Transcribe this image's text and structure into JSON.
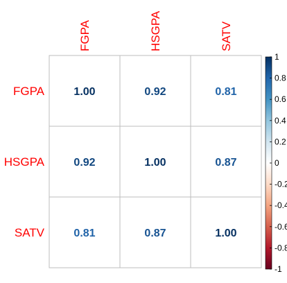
{
  "chart_data": {
    "type": "heatmap",
    "variables": [
      "FGPA",
      "HSGPA",
      "SATV"
    ],
    "matrix": [
      [
        1.0,
        0.92,
        0.81
      ],
      [
        0.92,
        1.0,
        0.87
      ],
      [
        0.81,
        0.87,
        1.0
      ]
    ],
    "cell_labels": [
      [
        "1.00",
        "0.92",
        "0.81"
      ],
      [
        "0.92",
        "1.00",
        "0.87"
      ],
      [
        "0.81",
        "0.87",
        "1.00"
      ]
    ],
    "colorbar": {
      "range": [
        -1,
        1
      ],
      "ticks": [
        1,
        0.8,
        0.6,
        0.4,
        0.2,
        0,
        -0.2,
        -0.4,
        -0.6,
        -0.8,
        -1
      ],
      "tick_labels": [
        "1",
        "0.8",
        "0.6",
        "0.4",
        "0.2",
        "0",
        "-0.2",
        "-0.4",
        "-0.6",
        "-0.8",
        "-1"
      ],
      "colors": [
        "#67001F",
        "#B2182B",
        "#D6604D",
        "#F4A582",
        "#FDDBC7",
        "#FFFFFF",
        "#D1E5F0",
        "#92C5DE",
        "#4393C3",
        "#2166AC",
        "#053061"
      ]
    },
    "label_color": "#FF0000",
    "grid_color": "#BEBEBE",
    "title": "",
    "xlabel": "",
    "ylabel": ""
  }
}
